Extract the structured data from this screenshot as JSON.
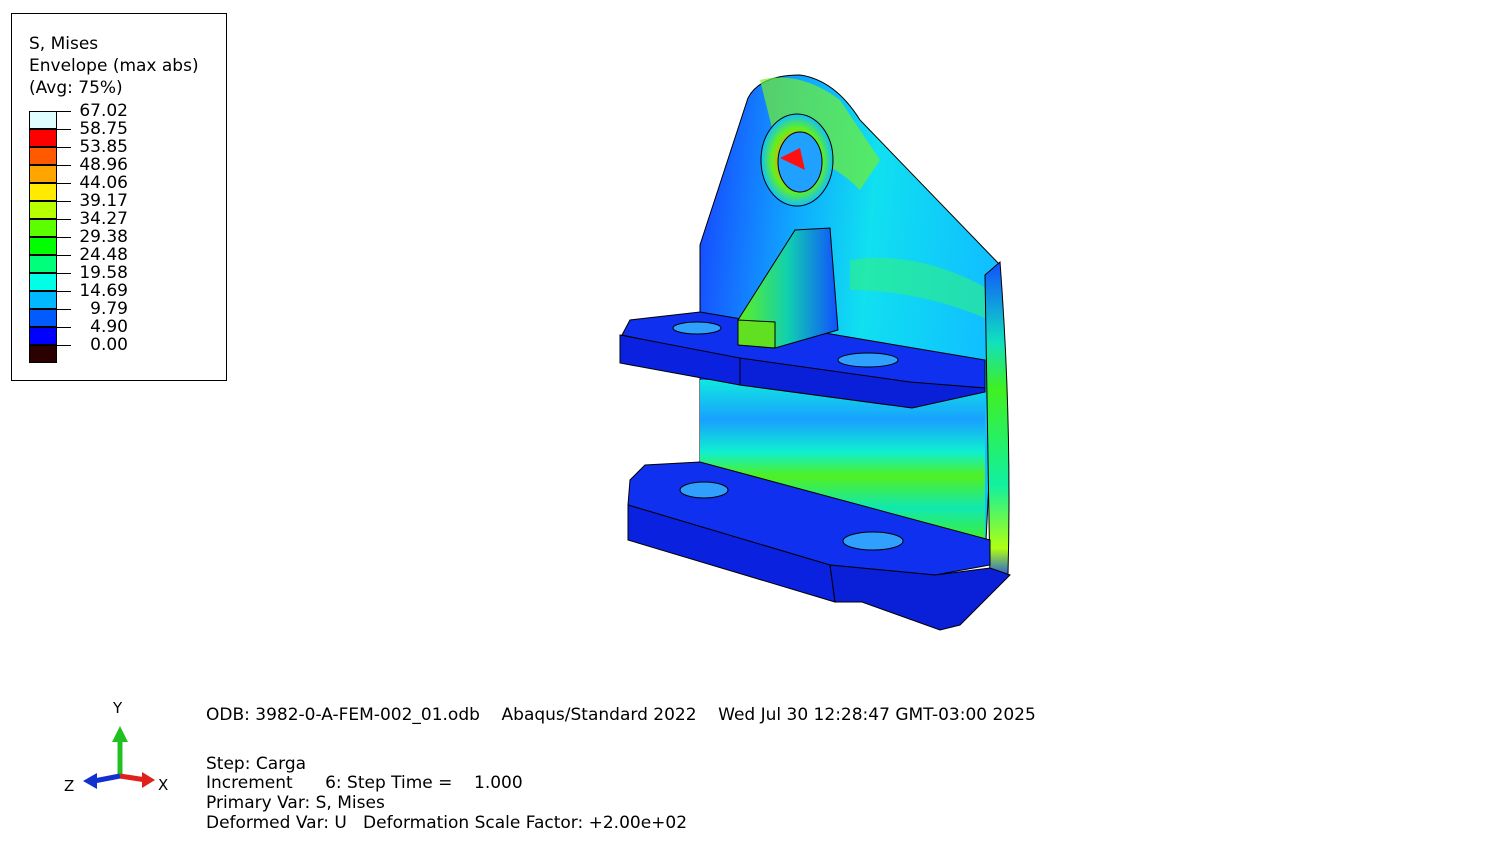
{
  "legend": {
    "title_lines": [
      "S, Mises",
      "Envelope (max abs)",
      "(Avg: 75%)"
    ],
    "levels": [
      {
        "value": "67.02",
        "color": "#dffcff"
      },
      {
        "value": "58.75",
        "color": "#ff0000"
      },
      {
        "value": "53.85",
        "color": "#ff5a00"
      },
      {
        "value": "48.96",
        "color": "#ffa500"
      },
      {
        "value": "44.06",
        "color": "#ffea00"
      },
      {
        "value": "39.17",
        "color": "#b8ff00"
      },
      {
        "value": "34.27",
        "color": "#5cff00"
      },
      {
        "value": "29.38",
        "color": "#00ff00"
      },
      {
        "value": "24.48",
        "color": "#00ff7a"
      },
      {
        "value": "19.58",
        "color": "#00ffe6"
      },
      {
        "value": "14.69",
        "color": "#00b8ff"
      },
      {
        "value": "9.79",
        "color": "#005cff"
      },
      {
        "value": "4.90",
        "color": "#0000ff"
      },
      {
        "value": "0.00",
        "color": "#2a0000"
      }
    ]
  },
  "info": {
    "odb_line": "ODB: 3982-0-A-FEM-002_01.odb    Abaqus/Standard 2022    Wed Jul 30 12:28:47 GMT-03:00 2025",
    "step_line": "Step: Carga",
    "increment_line": "Increment      6: Step Time =    1.000",
    "primary_line": "Primary Var: S, Mises",
    "deformed_line": "Deformed Var: U   Deformation Scale Factor: +2.00e+02"
  },
  "triad": {
    "x_label": "X",
    "y_label": "Y",
    "z_label": "Z",
    "x_color": "#e0201a",
    "y_color": "#1fc01f",
    "z_color": "#1030d0"
  }
}
